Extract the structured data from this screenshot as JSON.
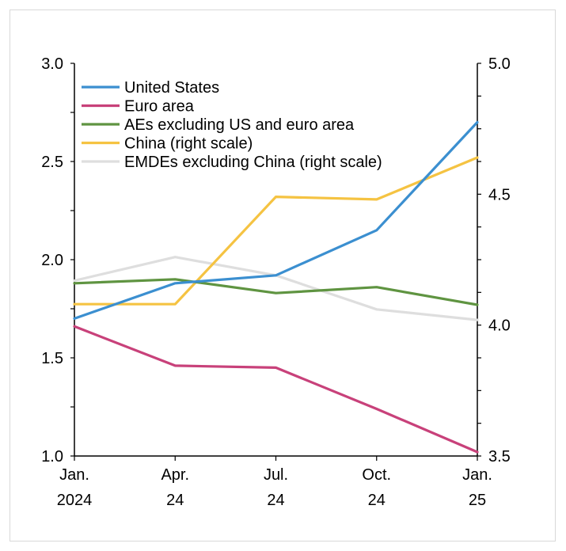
{
  "chart_data": {
    "type": "line",
    "title": "",
    "xlabel": "",
    "ylabel": "",
    "x_ticks": [
      {
        "line1": "Jan.",
        "line2": "2024"
      },
      {
        "line1": "Apr.",
        "line2": "24"
      },
      {
        "line1": "Jul.",
        "line2": "24"
      },
      {
        "line1": "Oct.",
        "line2": "24"
      },
      {
        "line1": "Jan.",
        "line2": "25"
      }
    ],
    "y_left": {
      "lim": [
        1.0,
        3.0
      ],
      "ticks": [
        "1.0",
        "1.5",
        "2.0",
        "2.5",
        "3.0"
      ]
    },
    "y_right": {
      "lim": [
        3.5,
        5.0
      ],
      "ticks": [
        "3.5",
        "4.0",
        "4.5",
        "5.0"
      ]
    },
    "grid": false,
    "legend_position": "top-left",
    "series": [
      {
        "name": "United States",
        "axis": "left",
        "color": "#3b8fd0",
        "values": [
          1.7,
          1.88,
          1.92,
          2.15,
          2.7
        ]
      },
      {
        "name": "Euro area",
        "axis": "left",
        "color": "#c8417a",
        "values": [
          1.66,
          1.46,
          1.45,
          1.24,
          1.02
        ]
      },
      {
        "name": "AEs excluding US and euro area",
        "axis": "left",
        "color": "#5f9441",
        "values": [
          1.88,
          1.9,
          1.83,
          1.86,
          1.77
        ]
      },
      {
        "name": "China (right scale)",
        "axis": "right",
        "color": "#f5c342",
        "values": [
          4.08,
          4.08,
          4.49,
          4.48,
          4.64
        ]
      },
      {
        "name": "EMDEs excluding China (right scale)",
        "axis": "right",
        "color": "#dedede",
        "values": [
          4.17,
          4.26,
          4.19,
          4.06,
          4.02
        ]
      }
    ]
  }
}
